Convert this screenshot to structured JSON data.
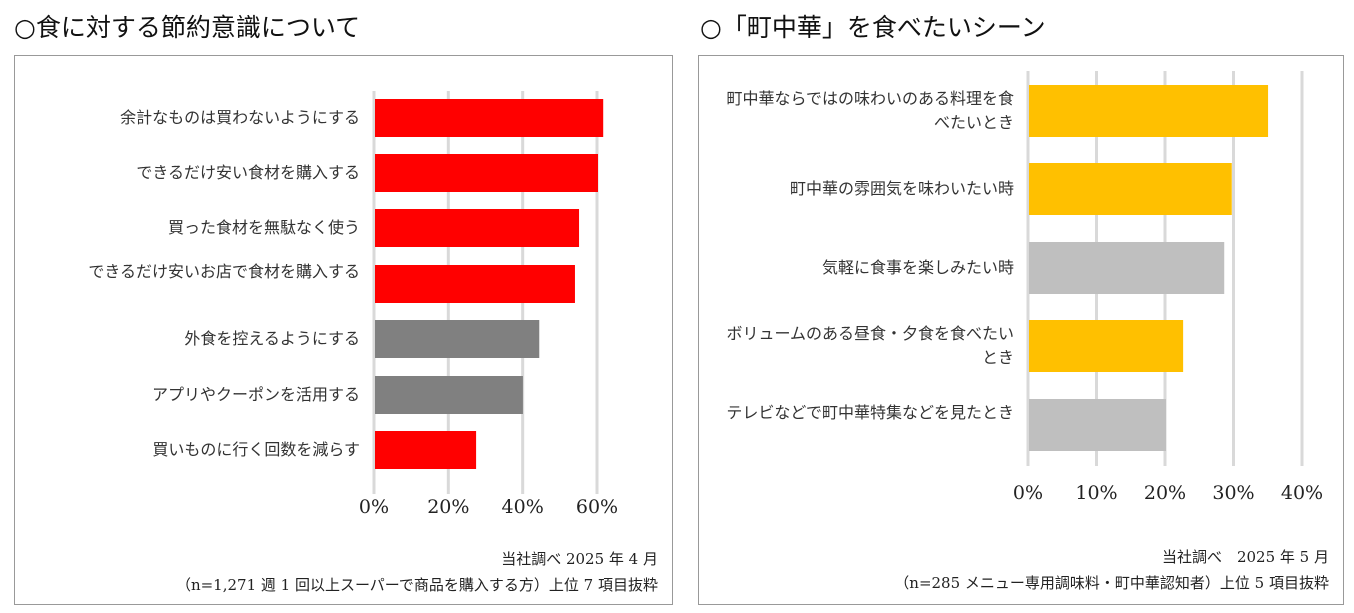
{
  "chart_data": [
    {
      "type": "bar",
      "orientation": "horizontal",
      "title": "○食に対する節約意識について",
      "categories": [
        "余計なものは買わないようにする",
        "できるだけ安い食材を購入する",
        "買った食材を無駄なく使う",
        "できるだけ安いお店で食材を購入する",
        "外食を控えるようにする",
        "アプリやクーポンを活用する",
        "買いものに行く回数を減らす"
      ],
      "values": [
        61.4,
        60.0,
        54.9,
        53.8,
        44.2,
        39.8,
        27.2
      ],
      "bar_colors": [
        "#ff0000",
        "#ff0000",
        "#ff0000",
        "#ff0000",
        "#808080",
        "#808080",
        "#ff0000"
      ],
      "unit": "%",
      "xlim": [
        0,
        60
      ],
      "xticks": [
        "0%",
        "20%",
        "40%",
        "60%"
      ],
      "grid": true,
      "notes": [
        "当社調べ 2025 年 4 月",
        "（n=1,271 週 1 回以上スーパーで商品を購入する方）上位 7 項目抜粋"
      ]
    },
    {
      "type": "bar",
      "orientation": "horizontal",
      "title": "○「町中華」を食べたいシーン",
      "categories": [
        "町中華ならではの味わいのある料理を食べたいとき",
        "町中華の雰囲気を味わいたい時",
        "気軽に食事を楽しみたい時",
        "ボリュームのある昼食・夕食を食べたいとき",
        "テレビなどで町中華特集などを見たとき"
      ],
      "values": [
        34.9,
        29.6,
        28.5,
        22.5,
        20.0
      ],
      "bar_colors": [
        "#ffc000",
        "#ffc000",
        "#bfbfbf",
        "#ffc000",
        "#bfbfbf"
      ],
      "unit": "%",
      "xlim": [
        0,
        40
      ],
      "xticks": [
        "0%",
        "10%",
        "20%",
        "30%",
        "40%"
      ],
      "grid": true,
      "notes": [
        "当社調べ　2025 年 5 月",
        "（n=285 メニュー専用調味料・町中華認知者）上位 5 項目抜粋"
      ]
    }
  ]
}
